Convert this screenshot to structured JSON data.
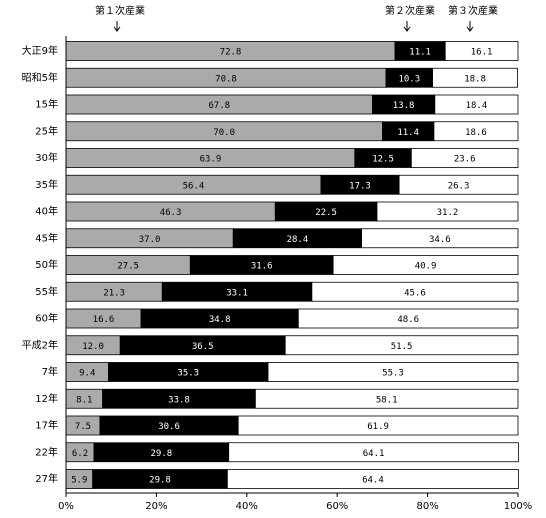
{
  "chart_data": {
    "type": "stacked-bar-horizontal",
    "categories": [
      "大正9年",
      "昭和5年",
      "15年",
      "25年",
      "30年",
      "35年",
      "40年",
      "45年",
      "50年",
      "55年",
      "60年",
      "平成2年",
      "7年",
      "12年",
      "17年",
      "22年",
      "27年"
    ],
    "series": [
      {
        "name": "第１次産業",
        "color": "#aaaaaa",
        "values": [
          72.8,
          70.8,
          67.8,
          70.0,
          63.9,
          56.4,
          46.3,
          37.0,
          27.5,
          21.3,
          16.6,
          12.0,
          9.4,
          8.1,
          7.5,
          6.2,
          5.9
        ],
        "value_labels": [
          "72.8",
          "70.8",
          "67.8",
          "70.0",
          "63.9",
          "56.4",
          "46.3",
          "37.0",
          "27.5",
          "21.3",
          "16.6",
          "12.0",
          "9.4",
          "8.1",
          "7.5",
          "6.2",
          "5.9"
        ]
      },
      {
        "name": "第２次産業",
        "color": "#000000",
        "values": [
          11.1,
          10.3,
          13.8,
          11.4,
          12.5,
          17.3,
          22.5,
          28.4,
          31.6,
          33.1,
          34.8,
          36.5,
          35.3,
          33.8,
          30.6,
          29.8,
          29.8
        ],
        "value_labels": [
          "11.1",
          "10.3",
          "13.8",
          "11.4",
          "12.5",
          "17.3",
          "22.5",
          "28.4",
          "31.6",
          "33.1",
          "34.8",
          "36.5",
          "35.3",
          "33.8",
          "30.6",
          "29.8",
          "29.8"
        ]
      },
      {
        "name": "第３次産業",
        "color": "#ffffff",
        "values": [
          16.1,
          18.8,
          18.4,
          18.6,
          23.6,
          26.3,
          31.2,
          34.6,
          40.9,
          45.6,
          48.6,
          51.5,
          55.3,
          58.1,
          61.9,
          64.1,
          64.4
        ],
        "value_labels": [
          "16.1",
          "18.8",
          "18.4",
          "18.6",
          "23.6",
          "26.3",
          "31.2",
          "34.6",
          "40.9",
          "45.6",
          "48.6",
          "51.5",
          "55.3",
          "58.1",
          "61.9",
          "64.1",
          "64.4"
        ]
      }
    ],
    "xlim": [
      0,
      100
    ],
    "xticks": [
      {
        "value": 0,
        "label": "0%"
      },
      {
        "value": 20,
        "label": "20%"
      },
      {
        "value": 40,
        "label": "40%"
      },
      {
        "value": 60,
        "label": "60%"
      },
      {
        "value": 80,
        "label": "80%"
      },
      {
        "value": 100,
        "label": "100%"
      }
    ]
  }
}
